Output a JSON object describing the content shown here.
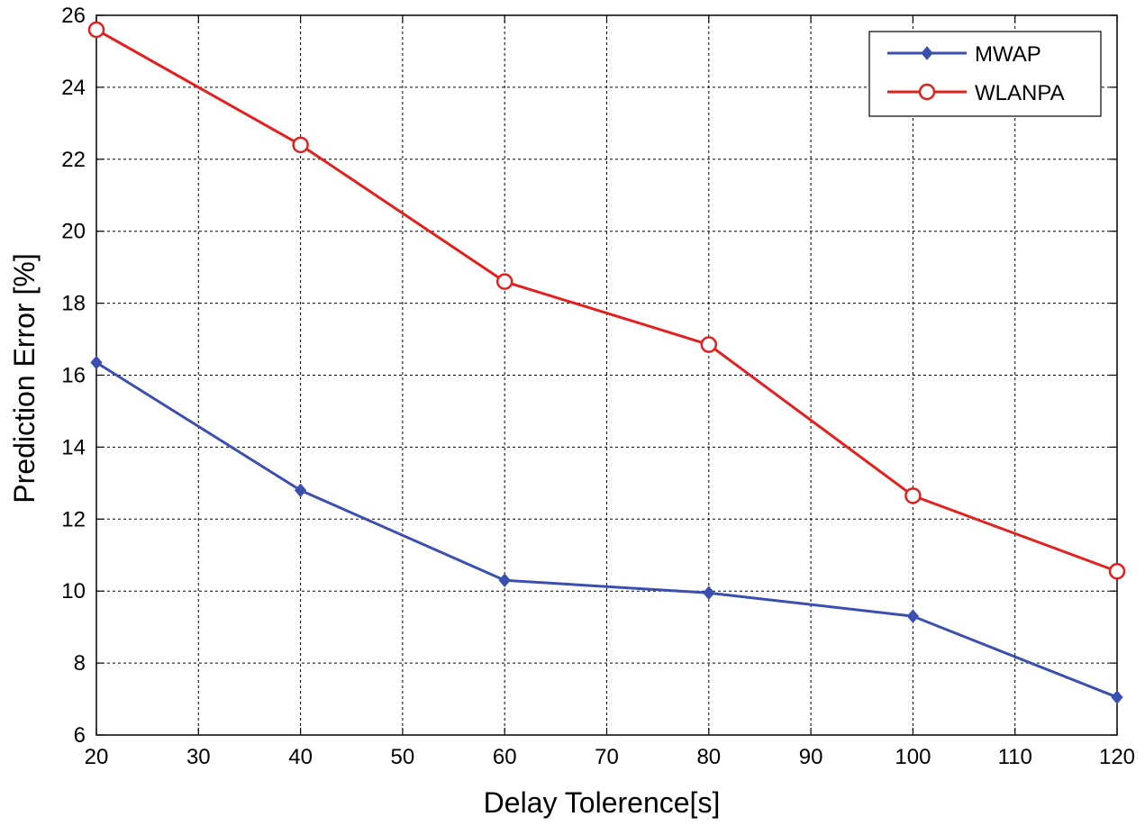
{
  "chart_data": {
    "type": "line",
    "xlabel": "Delay Tolerence[s]",
    "ylabel": "Prediction Error [%]",
    "xlim": [
      20,
      120
    ],
    "ylim": [
      6,
      26
    ],
    "xticks": [
      20,
      30,
      40,
      50,
      60,
      70,
      80,
      90,
      100,
      110,
      120
    ],
    "yticks": [
      6,
      8,
      10,
      12,
      14,
      16,
      18,
      20,
      22,
      24,
      26
    ],
    "grid": true,
    "legend_position": "top-right",
    "x": [
      20,
      40,
      60,
      80,
      100,
      120
    ],
    "series": [
      {
        "name": "MWAP",
        "color": "#3a4fb0",
        "marker": "diamond",
        "values": [
          16.35,
          12.8,
          10.3,
          9.95,
          9.3,
          7.05
        ]
      },
      {
        "name": "WLANPA",
        "color": "#e4201e",
        "marker": "circle",
        "values": [
          25.6,
          22.4,
          18.6,
          16.85,
          12.65,
          10.55
        ]
      }
    ]
  }
}
